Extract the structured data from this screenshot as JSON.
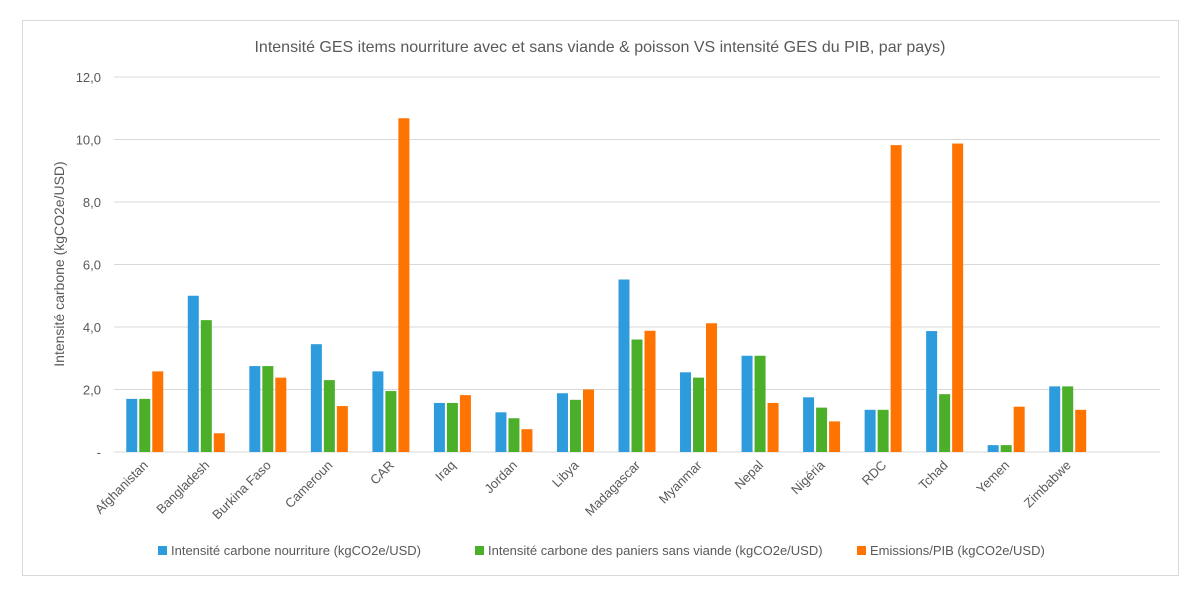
{
  "chart_data": {
    "type": "bar",
    "title": "Intensité GES items nourriture avec et sans viande & poisson VS intensité GES du PIB,  par pays)",
    "xlabel": "",
    "ylabel": "Intensité carbone (kgCO2e/USD)",
    "ylim": [
      0,
      12
    ],
    "yticks": [
      "-",
      "2,0",
      "4,0",
      "6,0",
      "8,0",
      "10,0",
      "12,0"
    ],
    "grid": true,
    "legend_position": "bottom",
    "categories": [
      "Afghanistan",
      "Bangladesh",
      "Burkina Faso",
      "Cameroun",
      "CAR",
      "Iraq",
      "Jordan",
      "Libya",
      "Madagascar",
      "Myanmar",
      "Nepal",
      "Nigéria",
      "RDC",
      "Tchad",
      "Yemen",
      "Zimbabwe"
    ],
    "series": [
      {
        "name": "Intensité carbone nourriture (kgCO2e/USD)",
        "color": "#2e9cdc",
        "values": [
          1.7,
          5.0,
          2.75,
          3.45,
          2.58,
          1.57,
          1.27,
          1.88,
          5.52,
          2.55,
          3.08,
          1.75,
          1.35,
          3.87,
          0.22,
          2.1
        ]
      },
      {
        "name": "Intensité carbone des paniers sans viande (kgCO2e/USD)",
        "color": "#4caf2a",
        "values": [
          1.7,
          4.22,
          2.75,
          2.3,
          1.95,
          1.57,
          1.08,
          1.67,
          3.6,
          2.38,
          3.08,
          1.42,
          1.35,
          1.85,
          0.22,
          2.1
        ]
      },
      {
        "name": "Emissions/PIB (kgCO2e/USD)",
        "color": "#ff7300",
        "values": [
          2.58,
          0.6,
          2.38,
          1.47,
          10.68,
          1.82,
          0.73,
          2.0,
          3.88,
          4.12,
          1.57,
          0.98,
          9.82,
          9.87,
          1.45,
          1.35
        ]
      }
    ]
  }
}
